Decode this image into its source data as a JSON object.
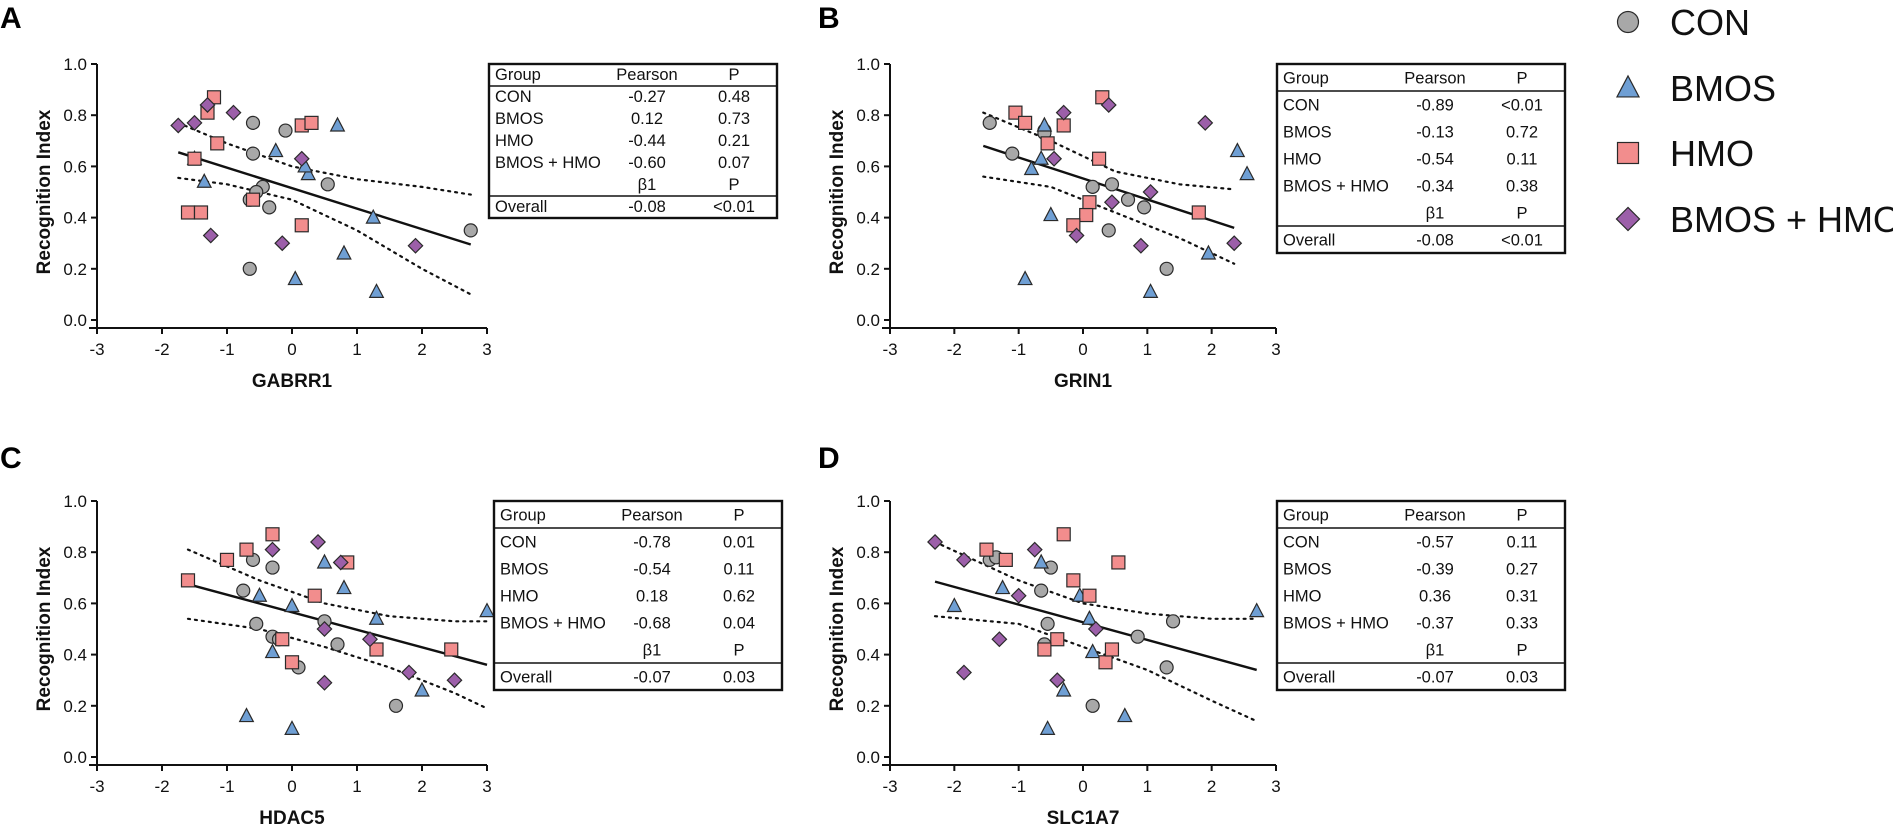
{
  "colors": {
    "CON": "#a8a8a8",
    "BMOS": "#6f9fd4",
    "HMO": "#f28d8d",
    "BMOS + HMO": "#9c5fa9"
  },
  "legend": [
    {
      "label": "CON",
      "marker": "circle"
    },
    {
      "label": "BMOS",
      "marker": "triangle"
    },
    {
      "label": "HMO",
      "marker": "square"
    },
    {
      "label": "BMOS + HMO",
      "marker": "diamond"
    }
  ],
  "chart_data": [
    {
      "panel": "A",
      "type": "scatter",
      "xlabel": "GABRR1",
      "ylabel": "Recognition Index",
      "xlim": [
        -3,
        3
      ],
      "ylim": [
        0.0,
        1.0
      ],
      "xticks": [
        "-3",
        "-2",
        "-1",
        "0",
        "1",
        "2",
        "3"
      ],
      "yticks": [
        "0.0",
        "0.2",
        "0.4",
        "0.6",
        "0.8",
        "1.0"
      ],
      "fit": {
        "x": [
          -1.75,
          2.75
        ],
        "y": [
          0.655,
          0.295
        ]
      },
      "ci_upper": [
        [
          -1.75,
          0.77
        ],
        [
          -1.0,
          0.69
        ],
        [
          0.0,
          0.6
        ],
        [
          1.0,
          0.55
        ],
        [
          2.0,
          0.52
        ],
        [
          2.75,
          0.49
        ]
      ],
      "ci_lower": [
        [
          -1.75,
          0.555
        ],
        [
          -1.0,
          0.53
        ],
        [
          0.0,
          0.47
        ],
        [
          1.0,
          0.35
        ],
        [
          2.0,
          0.2
        ],
        [
          2.75,
          0.1
        ]
      ],
      "series": [
        {
          "name": "CON",
          "points": [
            [
              -0.6,
              0.77
            ],
            [
              -0.1,
              0.74
            ],
            [
              -0.6,
              0.65
            ],
            [
              0.55,
              0.53
            ],
            [
              -0.45,
              0.52
            ],
            [
              -0.65,
              0.47
            ],
            [
              -0.35,
              0.44
            ],
            [
              2.75,
              0.35
            ],
            [
              -0.65,
              0.2
            ],
            [
              -0.55,
              0.5
            ]
          ]
        },
        {
          "name": "BMOS",
          "points": [
            [
              -1.5,
              0.63
            ],
            [
              -0.25,
              0.66
            ],
            [
              0.7,
              0.76
            ],
            [
              0.25,
              0.57
            ],
            [
              -1.35,
              0.54
            ],
            [
              1.25,
              0.4
            ],
            [
              0.8,
              0.26
            ],
            [
              0.05,
              0.16
            ],
            [
              1.3,
              0.11
            ],
            [
              0.2,
              0.6
            ]
          ]
        },
        {
          "name": "HMO",
          "points": [
            [
              -1.5,
              0.63
            ],
            [
              -1.2,
              0.87
            ],
            [
              -1.3,
              0.81
            ],
            [
              0.15,
              0.76
            ],
            [
              0.3,
              0.77
            ],
            [
              -1.15,
              0.69
            ],
            [
              -0.6,
              0.47
            ],
            [
              -1.6,
              0.42
            ],
            [
              -1.4,
              0.42
            ],
            [
              0.15,
              0.37
            ]
          ]
        },
        {
          "name": "BMOS + HMO",
          "points": [
            [
              -1.75,
              0.76
            ],
            [
              -1.5,
              0.77
            ],
            [
              -1.3,
              0.84
            ],
            [
              -0.9,
              0.81
            ],
            [
              0.15,
              0.63
            ],
            [
              -0.15,
              0.3
            ],
            [
              -1.25,
              0.33
            ],
            [
              1.9,
              0.29
            ]
          ]
        }
      ],
      "table": {
        "header": [
          "Group",
          "Pearson",
          "P"
        ],
        "rows": [
          [
            "CON",
            "-0.27",
            "0.48"
          ],
          [
            "BMOS",
            "0.12",
            "0.73"
          ],
          [
            "HMO",
            "-0.44",
            "0.21"
          ],
          [
            "BMOS + HMO",
            "-0.60",
            "0.07"
          ]
        ],
        "subheader": [
          "",
          "β1",
          "P"
        ],
        "overall": [
          "Overall",
          "-0.08",
          "<0.01"
        ]
      }
    },
    {
      "panel": "B",
      "type": "scatter",
      "xlabel": "GRIN1",
      "ylabel": "Recognition Index",
      "xlim": [
        -3,
        3
      ],
      "ylim": [
        0.0,
        1.0
      ],
      "xticks": [
        "-3",
        "-2",
        "-1",
        "0",
        "1",
        "2",
        "3"
      ],
      "yticks": [
        "0.0",
        "0.2",
        "0.4",
        "0.6",
        "0.8",
        "1.0"
      ],
      "fit": {
        "x": [
          -1.55,
          2.35
        ],
        "y": [
          0.68,
          0.36
        ]
      },
      "ci_upper": [
        [
          -1.55,
          0.81
        ],
        [
          -0.5,
          0.7
        ],
        [
          0.5,
          0.58
        ],
        [
          1.5,
          0.53
        ],
        [
          2.35,
          0.51
        ]
      ],
      "ci_lower": [
        [
          -1.55,
          0.56
        ],
        [
          -0.5,
          0.52
        ],
        [
          0.5,
          0.42
        ],
        [
          1.5,
          0.32
        ],
        [
          2.35,
          0.22
        ]
      ],
      "series": [
        {
          "name": "CON",
          "points": [
            [
              -1.45,
              0.77
            ],
            [
              -0.6,
              0.74
            ],
            [
              -1.1,
              0.65
            ],
            [
              0.15,
              0.52
            ],
            [
              0.45,
              0.53
            ],
            [
              0.7,
              0.47
            ],
            [
              0.95,
              0.44
            ],
            [
              0.4,
              0.35
            ],
            [
              1.3,
              0.2
            ],
            [
              -0.6,
              0.73
            ]
          ]
        },
        {
          "name": "BMOS",
          "points": [
            [
              -0.65,
              0.63
            ],
            [
              -0.8,
              0.59
            ],
            [
              -0.5,
              0.41
            ],
            [
              -0.9,
              0.16
            ],
            [
              1.05,
              0.11
            ],
            [
              1.95,
              0.26
            ],
            [
              2.4,
              0.66
            ],
            [
              2.55,
              0.57
            ],
            [
              -0.6,
              0.76
            ]
          ]
        },
        {
          "name": "HMO",
          "points": [
            [
              -1.05,
              0.81
            ],
            [
              -0.9,
              0.77
            ],
            [
              -0.3,
              0.76
            ],
            [
              0.3,
              0.87
            ],
            [
              -0.55,
              0.69
            ],
            [
              0.25,
              0.63
            ],
            [
              0.1,
              0.46
            ],
            [
              0.05,
              0.41
            ],
            [
              -0.15,
              0.37
            ],
            [
              1.8,
              0.42
            ]
          ]
        },
        {
          "name": "BMOS + HMO",
          "points": [
            [
              -0.3,
              0.81
            ],
            [
              0.4,
              0.84
            ],
            [
              -0.45,
              0.63
            ],
            [
              0.45,
              0.46
            ],
            [
              1.05,
              0.5
            ],
            [
              -0.1,
              0.33
            ],
            [
              0.9,
              0.29
            ],
            [
              1.9,
              0.77
            ],
            [
              2.35,
              0.3
            ]
          ]
        }
      ],
      "table": {
        "header": [
          "Group",
          "Pearson",
          "P"
        ],
        "rows": [
          [
            "CON",
            "-0.89",
            "<0.01"
          ],
          [
            "BMOS",
            "-0.13",
            "0.72"
          ],
          [
            "HMO",
            "-0.54",
            "0.11"
          ],
          [
            "BMOS + HMO",
            "-0.34",
            "0.38"
          ]
        ],
        "subheader": [
          "",
          "β1",
          "P"
        ],
        "overall": [
          "Overall",
          "-0.08",
          "<0.01"
        ]
      }
    },
    {
      "panel": "C",
      "type": "scatter",
      "xlabel": "HDAC5",
      "ylabel": "Recognition Index",
      "xlim": [
        -3,
        3
      ],
      "ylim": [
        0.0,
        1.0
      ],
      "xticks": [
        "-3",
        "-2",
        "-1",
        "0",
        "1",
        "2",
        "3"
      ],
      "yticks": [
        "0.0",
        "0.2",
        "0.4",
        "0.6",
        "0.8",
        "1.0"
      ],
      "fit": {
        "x": [
          -1.6,
          3.0
        ],
        "y": [
          0.675,
          0.36
        ]
      },
      "ci_upper": [
        [
          -1.6,
          0.81
        ],
        [
          -0.5,
          0.69
        ],
        [
          0.5,
          0.6
        ],
        [
          1.5,
          0.55
        ],
        [
          2.5,
          0.53
        ],
        [
          3.0,
          0.53
        ]
      ],
      "ci_lower": [
        [
          -1.6,
          0.54
        ],
        [
          -0.5,
          0.5
        ],
        [
          0.5,
          0.43
        ],
        [
          1.5,
          0.35
        ],
        [
          2.5,
          0.25
        ],
        [
          3.0,
          0.19
        ]
      ],
      "series": [
        {
          "name": "CON",
          "points": [
            [
              -0.75,
              0.65
            ],
            [
              -0.6,
              0.77
            ],
            [
              -0.3,
              0.74
            ],
            [
              -0.55,
              0.52
            ],
            [
              -0.3,
              0.47
            ],
            [
              0.5,
              0.53
            ],
            [
              0.7,
              0.44
            ],
            [
              0.1,
              0.35
            ],
            [
              1.6,
              0.2
            ],
            [
              -0.2,
              0.46
            ]
          ]
        },
        {
          "name": "BMOS",
          "points": [
            [
              -0.5,
              0.63
            ],
            [
              0.0,
              0.59
            ],
            [
              0.5,
              0.76
            ],
            [
              0.8,
              0.66
            ],
            [
              1.3,
              0.54
            ],
            [
              -0.3,
              0.41
            ],
            [
              2.0,
              0.26
            ],
            [
              -0.7,
              0.16
            ],
            [
              0.0,
              0.11
            ],
            [
              3.0,
              0.57
            ]
          ]
        },
        {
          "name": "HMO",
          "points": [
            [
              -1.6,
              0.69
            ],
            [
              -1.0,
              0.77
            ],
            [
              -0.7,
              0.81
            ],
            [
              -0.3,
              0.87
            ],
            [
              0.35,
              0.63
            ],
            [
              0.85,
              0.76
            ],
            [
              -0.15,
              0.46
            ],
            [
              0.0,
              0.37
            ],
            [
              1.3,
              0.42
            ],
            [
              2.45,
              0.42
            ]
          ]
        },
        {
          "name": "BMOS + HMO",
          "points": [
            [
              0.4,
              0.84
            ],
            [
              -0.3,
              0.81
            ],
            [
              0.75,
              0.76
            ],
            [
              0.5,
              0.5
            ],
            [
              1.2,
              0.46
            ],
            [
              1.8,
              0.33
            ],
            [
              2.5,
              0.3
            ],
            [
              0.5,
              0.29
            ]
          ]
        }
      ],
      "table": {
        "header": [
          "Group",
          "Pearson",
          "P"
        ],
        "rows": [
          [
            "CON",
            "-0.78",
            "0.01"
          ],
          [
            "BMOS",
            "-0.54",
            "0.11"
          ],
          [
            "HMO",
            "0.18",
            "0.62"
          ],
          [
            "BMOS + HMO",
            "-0.68",
            "0.04"
          ]
        ],
        "subheader": [
          "",
          "β1",
          "P"
        ],
        "overall": [
          "Overall",
          "-0.07",
          "0.03"
        ]
      }
    },
    {
      "panel": "D",
      "type": "scatter",
      "xlabel": "SLC1A7",
      "ylabel": "Recognition Index",
      "xlim": [
        -3,
        3
      ],
      "ylim": [
        0.0,
        1.0
      ],
      "xticks": [
        "-3",
        "-2",
        "-1",
        "0",
        "1",
        "2",
        "3"
      ],
      "yticks": [
        "0.0",
        "0.2",
        "0.4",
        "0.6",
        "0.8",
        "1.0"
      ],
      "fit": {
        "x": [
          -2.3,
          2.7
        ],
        "y": [
          0.685,
          0.34
        ]
      },
      "ci_upper": [
        [
          -2.3,
          0.84
        ],
        [
          -1.0,
          0.69
        ],
        [
          0.0,
          0.6
        ],
        [
          1.0,
          0.56
        ],
        [
          2.0,
          0.54
        ],
        [
          2.7,
          0.54
        ]
      ],
      "ci_lower": [
        [
          -2.3,
          0.55
        ],
        [
          -1.0,
          0.52
        ],
        [
          0.0,
          0.43
        ],
        [
          1.0,
          0.34
        ],
        [
          2.0,
          0.22
        ],
        [
          2.7,
          0.14
        ]
      ],
      "series": [
        {
          "name": "CON",
          "points": [
            [
              -1.45,
              0.77
            ],
            [
              -0.5,
              0.74
            ],
            [
              -0.65,
              0.65
            ],
            [
              -0.55,
              0.52
            ],
            [
              -0.6,
              0.44
            ],
            [
              0.85,
              0.47
            ],
            [
              1.4,
              0.53
            ],
            [
              1.3,
              0.35
            ],
            [
              0.15,
              0.2
            ],
            [
              -1.35,
              0.78
            ]
          ]
        },
        {
          "name": "BMOS",
          "points": [
            [
              -1.25,
              0.66
            ],
            [
              -0.65,
              0.76
            ],
            [
              -0.05,
              0.63
            ],
            [
              -2.0,
              0.59
            ],
            [
              0.1,
              0.54
            ],
            [
              0.15,
              0.41
            ],
            [
              -0.3,
              0.26
            ],
            [
              -0.55,
              0.11
            ],
            [
              0.65,
              0.16
            ],
            [
              2.7,
              0.57
            ]
          ]
        },
        {
          "name": "HMO",
          "points": [
            [
              -1.5,
              0.81
            ],
            [
              -1.2,
              0.77
            ],
            [
              -0.3,
              0.87
            ],
            [
              -0.15,
              0.69
            ],
            [
              0.55,
              0.76
            ],
            [
              0.1,
              0.63
            ],
            [
              -0.4,
              0.46
            ],
            [
              -0.6,
              0.42
            ],
            [
              0.35,
              0.37
            ],
            [
              0.45,
              0.42
            ]
          ]
        },
        {
          "name": "BMOS + HMO",
          "points": [
            [
              -2.3,
              0.84
            ],
            [
              -1.85,
              0.77
            ],
            [
              -0.75,
              0.81
            ],
            [
              -1.0,
              0.63
            ],
            [
              -1.3,
              0.46
            ],
            [
              -1.85,
              0.33
            ],
            [
              -0.4,
              0.3
            ],
            [
              0.2,
              0.5
            ]
          ]
        }
      ],
      "table": {
        "header": [
          "Group",
          "Pearson",
          "P"
        ],
        "rows": [
          [
            "CON",
            "-0.57",
            "0.11"
          ],
          [
            "BMOS",
            "-0.39",
            "0.27"
          ],
          [
            "HMO",
            "0.36",
            "0.31"
          ],
          [
            "BMOS + HMO",
            "-0.37",
            "0.33"
          ]
        ],
        "subheader": [
          "",
          "β1",
          "P"
        ],
        "overall": [
          "Overall",
          "-0.07",
          "0.03"
        ]
      }
    }
  ]
}
